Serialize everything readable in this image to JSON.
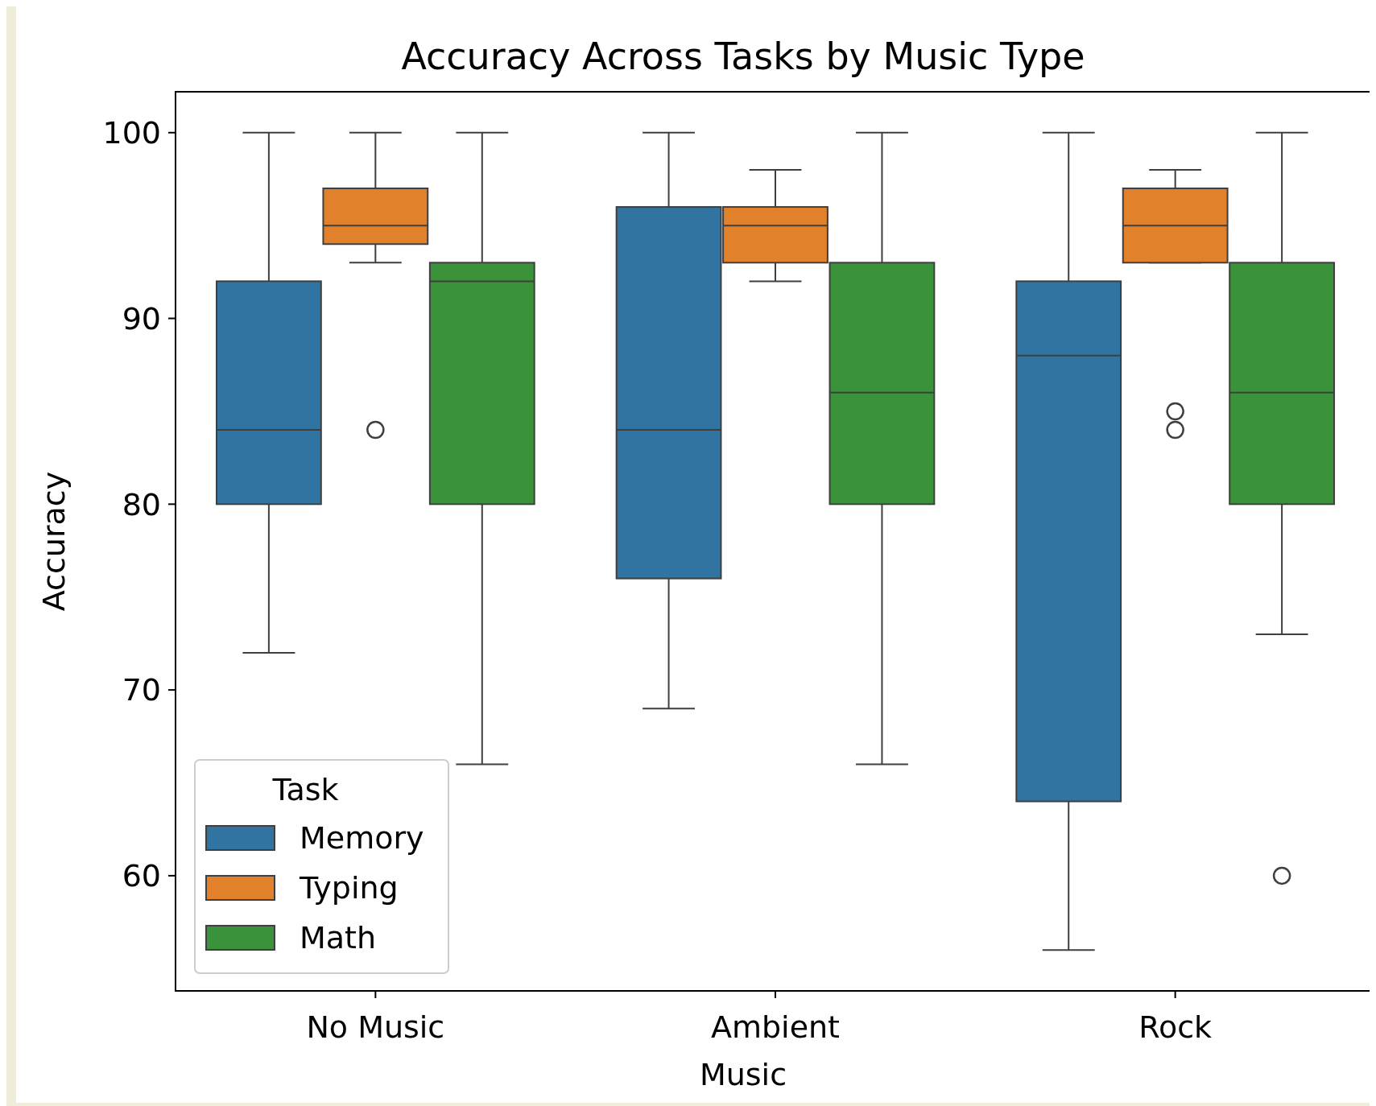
{
  "chart_data": {
    "type": "box",
    "title": "Accuracy Across Tasks by Music Type",
    "xlabel": "Music",
    "ylabel": "Accuracy",
    "legend_title": "Task",
    "categories": [
      "No Music",
      "Ambient",
      "Rock"
    ],
    "series": [
      {
        "name": "Memory",
        "color": "#3274a1",
        "boxes": [
          {
            "low": 72,
            "q1": 80,
            "median": 84,
            "q3": 92,
            "high": 100
          },
          {
            "low": 69,
            "q1": 76,
            "median": 84,
            "q3": 96,
            "high": 100
          },
          {
            "low": 56,
            "q1": 64,
            "median": 88,
            "q3": 92,
            "high": 100
          }
        ]
      },
      {
        "name": "Typing",
        "color": "#e1812c",
        "boxes": [
          {
            "low": 93,
            "q1": 94,
            "median": 95,
            "q3": 97,
            "high": 100,
            "outliers": [
              84
            ]
          },
          {
            "low": 92,
            "q1": 93,
            "median": 95,
            "q3": 96,
            "high": 98
          },
          {
            "low": 93,
            "q1": 93,
            "median": 95,
            "q3": 97,
            "high": 98,
            "outliers": [
              84,
              85
            ]
          }
        ]
      },
      {
        "name": "Math",
        "color": "#3a923a",
        "boxes": [
          {
            "low": 66,
            "q1": 80,
            "median": 92,
            "q3": 93,
            "high": 100
          },
          {
            "low": 66,
            "q1": 80,
            "median": 86,
            "q3": 93,
            "high": 100
          },
          {
            "low": 73,
            "q1": 80,
            "median": 86,
            "q3": 93,
            "high": 100,
            "outliers": [
              60
            ]
          }
        ]
      }
    ],
    "ylim": [
      53.8,
      102.2
    ],
    "yticks": [
      60,
      70,
      80,
      90,
      100
    ],
    "grid": false,
    "legend": "bottom left"
  }
}
